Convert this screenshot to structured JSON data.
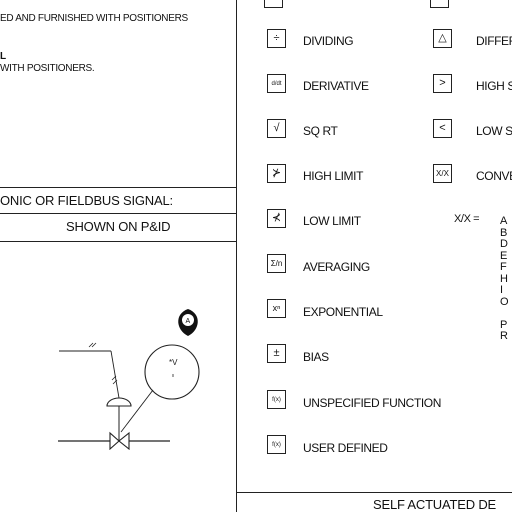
{
  "left_panel": {
    "note_line1": "ED AND FURNISHED WITH POSITIONERS",
    "note_bold": "L",
    "note_line2": "WITH POSITIONERS.",
    "signal_header": "ONIC OR FIELDBUS SIGNAL:",
    "signal_subheader": "SHOWN ON P&ID",
    "diagram": {
      "balloon_label": "A",
      "instrument_label": "*V"
    }
  },
  "functions": [
    {
      "symbol": "÷",
      "label": "DIVIDING"
    },
    {
      "symbol": "d/dt",
      "label": "DERIVATIVE"
    },
    {
      "symbol": "√",
      "label": "SQ RT"
    },
    {
      "symbol": "⊁",
      "label": "HIGH LIMIT"
    },
    {
      "symbol": "⊀",
      "label": "LOW LIMIT"
    },
    {
      "symbol": "Σ/n",
      "label": "AVERAGING"
    },
    {
      "symbol": "xⁿ",
      "label": "EXPONENTIAL"
    },
    {
      "symbol": "±",
      "label": "BIAS"
    },
    {
      "symbol": "f(x)",
      "label": "UNSPECIFIED FUNCTION"
    },
    {
      "symbol": "f(x)",
      "label": "USER DEFINED"
    }
  ],
  "functions_right": [
    {
      "symbol": "△",
      "label": "DIFFER"
    },
    {
      "symbol": ">",
      "label": "HIGH S"
    },
    {
      "symbol": "<",
      "label": "LOW S"
    },
    {
      "symbol": "X/X",
      "label": "CONVE"
    }
  ],
  "conversion_legend": {
    "key": "X/X =",
    "letters": [
      "A",
      "B",
      "D",
      "E",
      "F",
      "H",
      "I",
      "O",
      "",
      "P",
      "R"
    ]
  },
  "bottom_header": "SELF ACTUATED DE"
}
